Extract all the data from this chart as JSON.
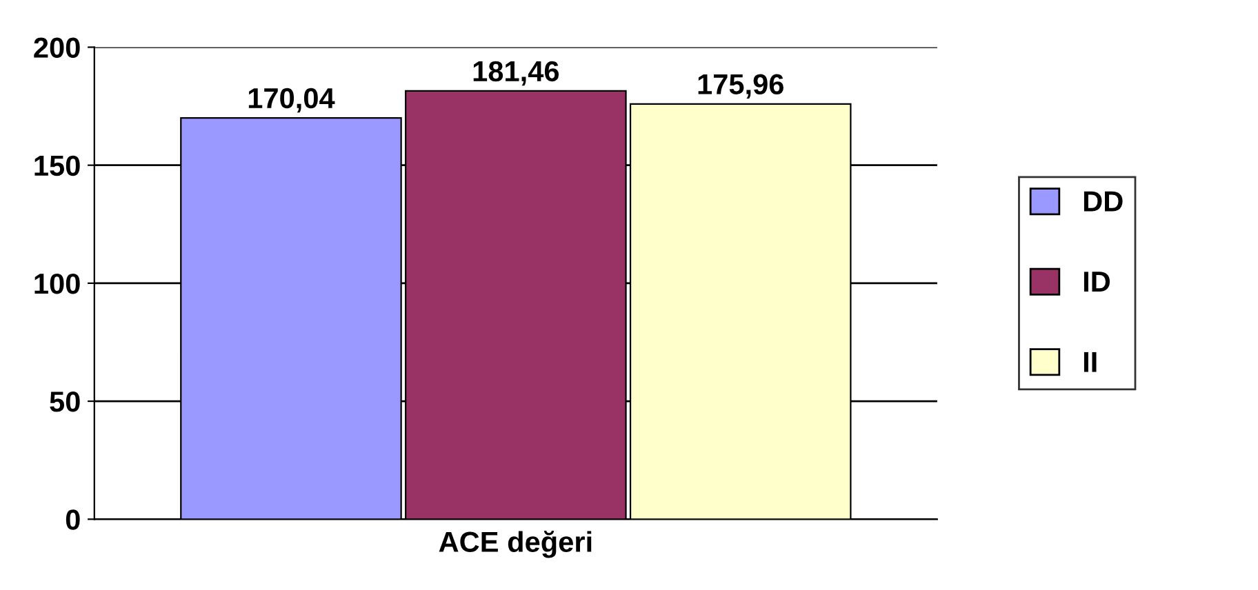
{
  "chart_data": {
    "type": "bar",
    "categories": [
      "ACE değeri"
    ],
    "series": [
      {
        "name": "DD",
        "color": "#9999ff",
        "values": [
          170.04
        ],
        "value_labels": [
          "170,04"
        ]
      },
      {
        "name": "ID",
        "color": "#993366",
        "values": [
          181.46
        ],
        "value_labels": [
          "181,46"
        ]
      },
      {
        "name": "II",
        "color": "#ffffcc",
        "values": [
          175.96
        ],
        "value_labels": [
          "175,96"
        ]
      }
    ],
    "ylim": [
      0,
      200
    ],
    "yticks": [
      0,
      50,
      100,
      150,
      200
    ],
    "grid": "y",
    "legend": "right"
  }
}
